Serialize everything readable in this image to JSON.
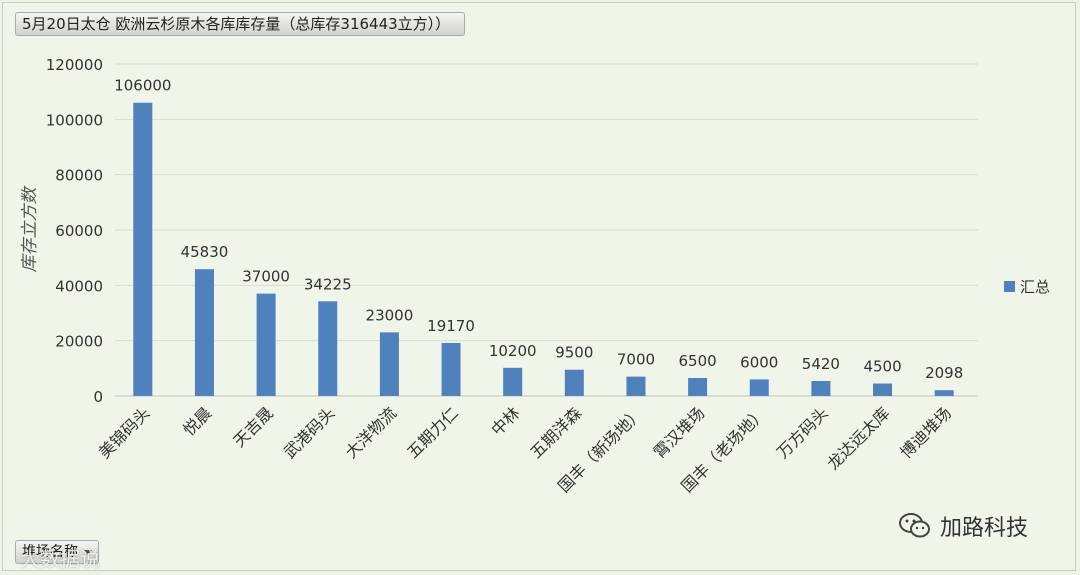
{
  "header": {
    "title": "5月20日太仓 欧洲云杉原木各库库存量（总库存316443立方））"
  },
  "footer": {
    "field_button_label": "堆场名称",
    "watermark_text": "大数据说",
    "brand_name": "加路科技"
  },
  "icons": {
    "dropdown": "chevron-down-icon",
    "brand": "wechat-icon"
  },
  "colors": {
    "bar": "#4f81bd",
    "grid": "#d9dccf",
    "axis_text": "#333333"
  },
  "chart_data": {
    "type": "bar",
    "title": "5月20日太仓 欧洲云杉原木各库库存量（总库存316443立方））",
    "xlabel": "",
    "ylabel": "库存立方数",
    "ylim": [
      0,
      120000
    ],
    "yticks": [
      "0",
      "20000",
      "40000",
      "60000",
      "80000",
      "100000",
      "120000"
    ],
    "grid": true,
    "legend_position": "right",
    "categories": [
      "美锦码头",
      "悦晨",
      "天吉晟",
      "武港码头",
      "大洋物流",
      "五期力仁",
      "中林",
      "五期洋森",
      "国丰（新场地）",
      "霄汉堆场",
      "国丰（老场地）",
      "万方码头",
      "龙达远太库",
      "博迪堆场"
    ],
    "series": [
      {
        "name": "汇总",
        "values": [
          106000,
          45830,
          37000,
          34225,
          23000,
          19170,
          10200,
          9500,
          7000,
          6500,
          6000,
          5420,
          4500,
          2098
        ],
        "labels": [
          "106000",
          "45830",
          "37000",
          "34225",
          "23000",
          "19170",
          "10200",
          "9500",
          "7000",
          "6500",
          "6000",
          "5420",
          "4500",
          "2098"
        ]
      }
    ]
  }
}
